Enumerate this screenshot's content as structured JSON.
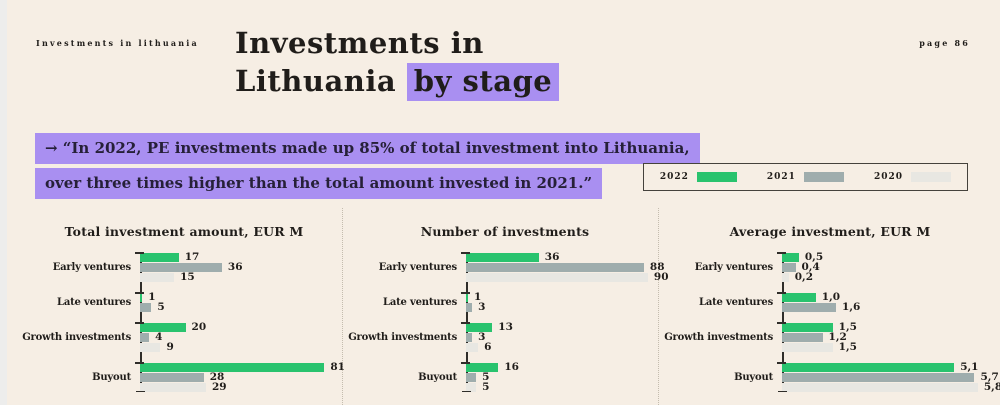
{
  "header": {
    "brand": "Investments in lithuania",
    "page_number": "page 86",
    "title_line1": "Investments in",
    "title_line2": "Lithuania",
    "title_highlight": "by stage"
  },
  "quote": {
    "line1": "→  “In 2022, PE investments made up 85% of total investment into Lithuania,",
    "line2": "over three times higher than the total amount invested in 2021.”"
  },
  "colors": {
    "background": "#f6eee4",
    "highlight_purple": "#a98ff1",
    "green_2022": "#29c36e",
    "gray_2021": "#9fadad",
    "lightgray_2020": "#e8e7e2",
    "ink": "#201d1a",
    "axis": "#2f2d29"
  },
  "legend": {
    "items": [
      {
        "label": "2022",
        "color": "#29c36e"
      },
      {
        "label": "2021",
        "color": "#9fadad"
      },
      {
        "label": "2020",
        "color": "#e8e7e2"
      }
    ]
  },
  "chart_data": [
    {
      "type": "bar",
      "orientation": "horizontal",
      "title": "Total investment amount, EUR M",
      "categories": [
        "Early ventures",
        "Late ventures",
        "Growth investments",
        "Buyout"
      ],
      "series": [
        {
          "name": "2022",
          "color": "#29c36e",
          "values": [
            17,
            1,
            20,
            81
          ],
          "labels": [
            "17",
            "1",
            "20",
            "81"
          ]
        },
        {
          "name": "2021",
          "color": "#9fadad",
          "values": [
            36,
            5,
            4,
            28
          ],
          "labels": [
            "36",
            "5",
            "4",
            "28"
          ]
        },
        {
          "name": "2020",
          "color": "#e8e7e2",
          "values": [
            15,
            null,
            9,
            29
          ],
          "labels": [
            "15",
            null,
            "9",
            "29"
          ]
        }
      ],
      "xlim": [
        0,
        87
      ],
      "grid": false,
      "legend_position": "top-right"
    },
    {
      "type": "bar",
      "orientation": "horizontal",
      "title": "Number of investments",
      "categories": [
        "Early ventures",
        "Late ventures",
        "Growth investments",
        "Buyout"
      ],
      "series": [
        {
          "name": "2022",
          "color": "#29c36e",
          "values": [
            36,
            1,
            13,
            16
          ],
          "labels": [
            "36",
            "1",
            "13",
            "16"
          ]
        },
        {
          "name": "2021",
          "color": "#9fadad",
          "values": [
            88,
            3,
            3,
            5
          ],
          "labels": [
            "88",
            "3",
            "3",
            "5"
          ]
        },
        {
          "name": "2020",
          "color": "#e8e7e2",
          "values": [
            90,
            null,
            6,
            5
          ],
          "labels": [
            "90",
            null,
            "6",
            "5"
          ]
        }
      ],
      "xlim": [
        0,
        93
      ],
      "grid": false,
      "legend_position": "top-right"
    },
    {
      "type": "bar",
      "orientation": "horizontal",
      "title": "Average investment, EUR M",
      "categories": [
        "Early ventures",
        "Late ventures",
        "Growth investments",
        "Buyout"
      ],
      "series": [
        {
          "name": "2022",
          "color": "#29c36e",
          "values": [
            0.5,
            1.0,
            1.5,
            5.1
          ],
          "labels": [
            "0,5",
            "1,0",
            "1,5",
            "5,1"
          ]
        },
        {
          "name": "2021",
          "color": "#9fadad",
          "values": [
            0.4,
            1.6,
            1.2,
            5.7
          ],
          "labels": [
            "0,4",
            "1,6",
            "1,2",
            "5,7"
          ]
        },
        {
          "name": "2020",
          "color": "#e8e7e2",
          "values": [
            0.2,
            null,
            1.5,
            5.8
          ],
          "labels": [
            "0,2",
            null,
            "1,5",
            "5,8"
          ]
        }
      ],
      "xlim": [
        0,
        6.1
      ],
      "grid": false,
      "legend_position": "top-right"
    }
  ]
}
